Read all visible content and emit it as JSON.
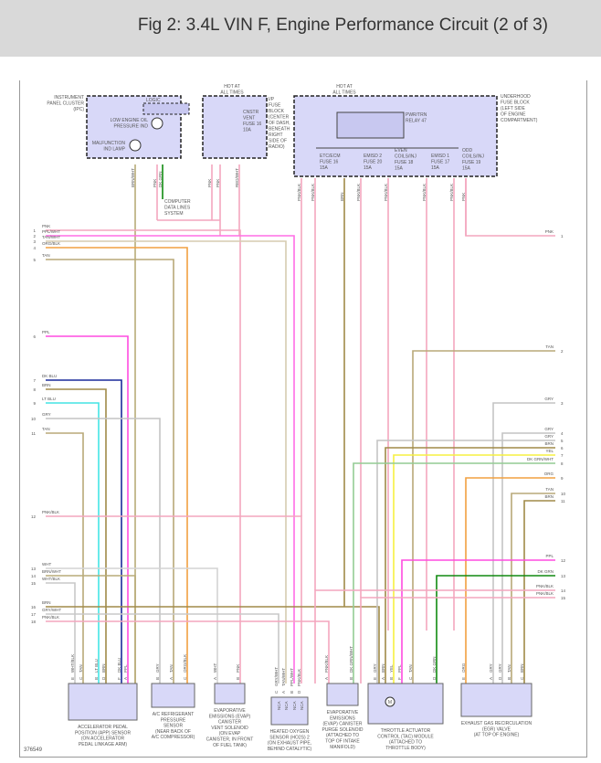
{
  "header": {
    "title": "Fig 2: 3.4L VIN F, Engine Performance Circuit (2 of 3)"
  },
  "figure_id": "376549",
  "colors": {
    "PNK": "#f4a6be",
    "PPL": "#ff4be0",
    "PPL/WHT": "#ff6ee6",
    "TAN": "#b8a878",
    "TAN/WHT": "#d6ccb0",
    "ORG": "#f2a040",
    "ORG/BLK": "#f2a040",
    "BRN": "#a08a48",
    "BRN/WHT": "#b8ac78",
    "DK BLU": "#1a2a9a",
    "LT BLU": "#44e4e4",
    "GRY": "#c4c4c4",
    "WHT": "#d4d4d4",
    "WHT/BLK": "#c8c8c8",
    "GRY/WHT": "#c8c8c8",
    "PNK/BLK": "#f4a6be",
    "YEL": "#f6f040",
    "DK GRN": "#108a10",
    "DK GRN/WHT": "#94cc94",
    "RED/WHT": "#f4a6be",
    "module_fill": "#d8d8f8"
  },
  "modules": {
    "ipc": {
      "label": [
        "INSTRUMENT",
        "PANEL CLUSTER",
        "(IPC)"
      ],
      "logic": "LOGIC",
      "oil": [
        "LOW ENGINE OIL",
        "PRESSURE IND"
      ],
      "mil": [
        "MALFUNCTION",
        "IND LAMP"
      ],
      "data_lines": [
        "COMPUTER",
        "DATA LINES",
        "SYSTEM"
      ]
    },
    "ip_fuse": {
      "hot": [
        "HOT AT",
        "ALL TIMES"
      ],
      "label": [
        "I/P",
        "FUSE",
        "BLOCK",
        "(CENTER",
        "OF DASH,",
        "BENEATH",
        "RIGHT",
        "SIDE OF",
        "RADIO)"
      ],
      "fuse": [
        "CNSTR",
        "VENT",
        "FUSE 16",
        "10A"
      ]
    },
    "underhood": {
      "hot": [
        "HOT AT",
        "ALL TIMES"
      ],
      "label": [
        "UNDERHOOD",
        "FUSE BLOCK",
        "(LEFT SIDE",
        "OF ENGINE",
        "COMPARTMENT)"
      ],
      "relay": [
        "PWR/TRN",
        "RELAY 47"
      ],
      "fuses": [
        [
          "ETC/ECM",
          "FUSE 16",
          "15A"
        ],
        [
          "EMISD 2",
          "FUSE 20",
          "15A"
        ],
        [
          "EVEN",
          "COILS/INJ",
          "FUSE 18",
          "15A"
        ],
        [
          "EMISD 1",
          "FUSE 17",
          "15A"
        ],
        [
          "ODD",
          "COILS/INJ",
          "FUSE 19",
          "15A"
        ]
      ]
    }
  },
  "top_wires": [
    {
      "label": "BRN/WHT",
      "color": "BRN/WHT"
    },
    {
      "label": "PNK",
      "color": "PNK"
    },
    {
      "label": "DK GRN",
      "color": "DK GRN"
    },
    {
      "label": "PNK",
      "color": "PNK"
    },
    {
      "label": "PNK",
      "color": "PNK"
    },
    {
      "label": "RED/WHT",
      "color": "RED/WHT"
    },
    {
      "label": "PNK/BLK",
      "color": "PNK/BLK"
    },
    {
      "label": "PNK/BLK",
      "color": "PNK/BLK"
    },
    {
      "label": "BRN",
      "color": "BRN"
    },
    {
      "label": "PNK/BLK",
      "color": "PNK/BLK"
    },
    {
      "label": "PNK/BLK",
      "color": "PNK/BLK"
    },
    {
      "label": "PNK/BLK",
      "color": "PNK/BLK"
    },
    {
      "label": "PNK/BLK",
      "color": "PNK/BLK"
    },
    {
      "label": "PNK",
      "color": "PNK"
    }
  ],
  "left_wires": [
    {
      "n": "1",
      "label": "PNK"
    },
    {
      "n": "2",
      "label": "PPL/WHT"
    },
    {
      "n": "3",
      "label": "TAN/WHT"
    },
    {
      "n": "4",
      "label": "ORG/BLK"
    },
    {
      "n": "5",
      "label": "TAN"
    },
    {
      "n": "6",
      "label": "PPL"
    },
    {
      "n": "7",
      "label": "DK BLU"
    },
    {
      "n": "8",
      "label": "BRN"
    },
    {
      "n": "9",
      "label": "LT BLU"
    },
    {
      "n": "10",
      "label": "GRY"
    },
    {
      "n": "11",
      "label": "TAN"
    },
    {
      "n": "12",
      "label": "PNK/BLK"
    },
    {
      "n": "13",
      "label": "WHT"
    },
    {
      "n": "14",
      "label": "BRN/WHT"
    },
    {
      "n": "15",
      "label": "WHT/BLK"
    },
    {
      "n": "16",
      "label": "BRN"
    },
    {
      "n": "17",
      "label": "GRY/WHT"
    },
    {
      "n": "18",
      "label": "PNK/BLK"
    }
  ],
  "right_wires": [
    {
      "n": "1",
      "label": "PNK"
    },
    {
      "n": "2",
      "label": "TAN"
    },
    {
      "n": "3",
      "label": "GRY"
    },
    {
      "n": "4",
      "label": "GRY"
    },
    {
      "n": "5",
      "label": "GRY"
    },
    {
      "n": "6",
      "label": "BRN"
    },
    {
      "n": "7",
      "label": "YEL"
    },
    {
      "n": "8",
      "label": "DK GRN/WHT"
    },
    {
      "n": "9",
      "label": "ORG"
    },
    {
      "n": "10",
      "label": "TAN"
    },
    {
      "n": "11",
      "label": "BRN"
    },
    {
      "n": "12",
      "label": "PPL"
    },
    {
      "n": "13",
      "label": "DK GRN"
    },
    {
      "n": "14",
      "label": "PNK/BLK"
    },
    {
      "n": "15",
      "label": "PNK/BLK"
    }
  ],
  "components": [
    {
      "name": "app-sensor",
      "label": [
        "ACCELERATOR PEDAL",
        "POSITION (APP) SENSOR",
        "(ON ACCELERATOR",
        "PEDAL LINKAGE ARM)"
      ],
      "pins": [
        [
          "E",
          "WHT/BLK"
        ],
        [
          "C",
          "TAN"
        ],
        [
          "B",
          "LT BLU"
        ],
        [
          "D",
          "BRN"
        ],
        [
          "F",
          "DK BLU"
        ],
        [
          "A",
          "PPL"
        ]
      ]
    },
    {
      "name": "ac-pressure-sensor",
      "label": [
        "A/C REFRIGERANT",
        "PRESSURE",
        "SENSOR",
        "(NEAR BACK OF",
        "A/C COMPRESSOR)"
      ],
      "pins": [
        [
          "B",
          "GRY"
        ],
        [
          "A",
          "TAN"
        ],
        [
          "C",
          "ORG/BLK"
        ]
      ]
    },
    {
      "name": "evap-vent-solenoid",
      "label": [
        "EVAPORATIVE",
        "EMISSIONS (EVAP)",
        "CANISTER",
        "VENT SOLENOID",
        "(ON EVAP",
        "CANISTER, IN FRONT",
        "OF FUEL TANK)"
      ],
      "pins": [
        [
          "A",
          "WHT"
        ],
        [
          "B",
          "PNK"
        ]
      ]
    },
    {
      "name": "ho2s-2",
      "label": [
        "HEATED OXYGEN",
        "SENSOR (HO2S) 2",
        "(ON EXHAUST PIPE,",
        "BEHIND CATALYTIC)"
      ],
      "pins": [
        [
          "C",
          "GRY/WHT"
        ],
        [
          "A",
          "TAN/WHT"
        ],
        [
          "B",
          "PPL/WHT"
        ],
        [
          "D",
          "PNK/BLK"
        ]
      ],
      "connector": "NCA"
    },
    {
      "name": "evap-purge-solenoid",
      "label": [
        "EVAPORATIVE",
        "EMISSIONS",
        "(EVAP) CANISTER",
        "PURGE SOLENOID",
        "(ATTACHED TO",
        "TOP OF INTAKE",
        "MANIFOLD)"
      ],
      "pins": [
        [
          "A",
          "PNK/BLK"
        ],
        [
          "B",
          "DK GRN/WHT"
        ]
      ]
    },
    {
      "name": "tac-module",
      "label": [
        "THROTTLE ACTUATOR",
        "CONTROL (TAC) MODULE",
        "(ATTACHED TO",
        "THROTTLE BODY)"
      ],
      "pins": [
        [
          "E",
          "GRY"
        ],
        [
          "A",
          "BRN"
        ],
        [
          "B",
          "YEL"
        ],
        [
          "F",
          "PPL"
        ],
        [
          "C",
          "TAN"
        ],
        [
          "D",
          "DK GRN"
        ]
      ],
      "motor": "M"
    },
    {
      "name": "egr-valve",
      "label": [
        "EXHAUST GAS RECIRCULATION",
        "(EGR) VALVE",
        "(AT TOP OF ENGINE)"
      ],
      "pins": [
        [
          "E",
          "ORG"
        ],
        [
          "A",
          "GRY"
        ],
        [
          "D",
          "GRY"
        ],
        [
          "B",
          "TAN"
        ],
        [
          "C",
          "BRN"
        ]
      ]
    }
  ]
}
